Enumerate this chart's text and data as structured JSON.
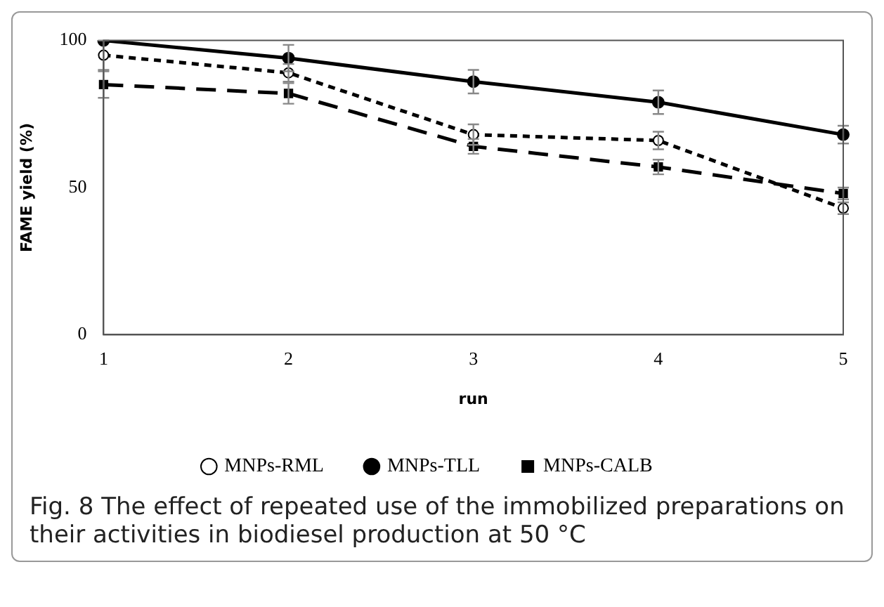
{
  "chart_data": {
    "type": "line",
    "xlabel": "run",
    "ylabel": "FAME yield (%)",
    "categories": [
      "1",
      "2",
      "3",
      "4",
      "5"
    ],
    "series": [
      {
        "name": "MNPs-RML",
        "color": "#000000",
        "marker": "circle",
        "line_style": "dashed",
        "values": [
          95,
          89,
          68,
          66,
          43
        ],
        "errors": [
          5,
          3,
          3.5,
          3,
          2
        ]
      },
      {
        "name": "MNPs-TLL",
        "color": "#000000",
        "marker": "circle",
        "line_style": "solid",
        "values": [
          100,
          94,
          86,
          79,
          68
        ],
        "errors": [
          null,
          4.5,
          4,
          4,
          3
        ]
      },
      {
        "name": "MNPs-CALB",
        "color": "#000000",
        "marker": "square",
        "line_style": "dashed",
        "values": [
          85,
          82,
          64,
          57,
          48
        ],
        "errors": [
          4.5,
          3.5,
          2.5,
          2.5,
          2
        ]
      }
    ],
    "ylim": [
      0,
      100
    ],
    "yticks": [
      0,
      50,
      100
    ],
    "grid": false,
    "legend": "bottom",
    "annotations": [
      "Fig. 8  The effect of repeated use of the immobilized preparations on their activities in biodiesel production at 50 °C"
    ]
  }
}
